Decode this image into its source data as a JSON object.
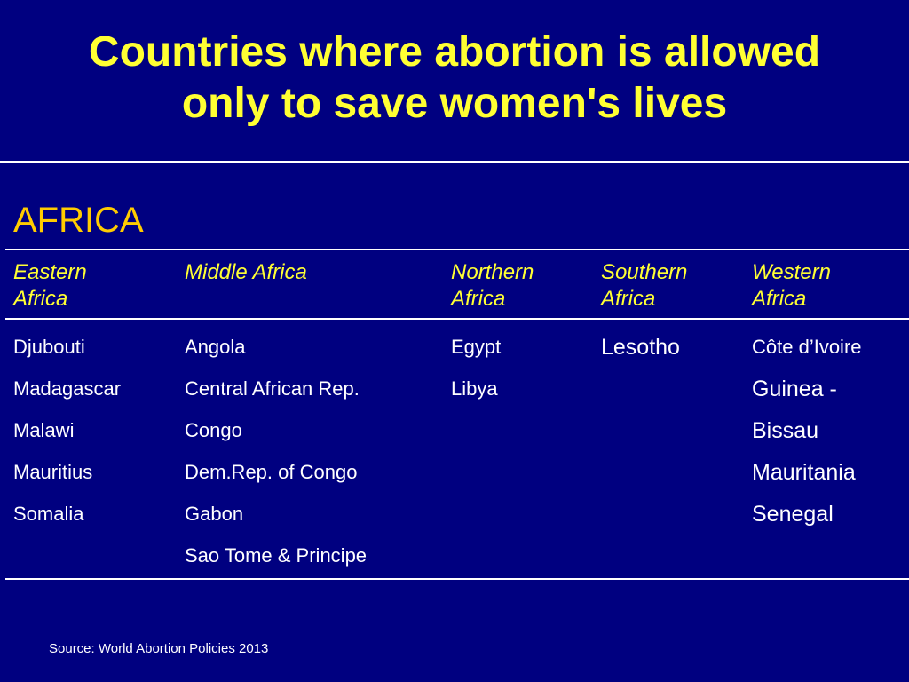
{
  "title": {
    "line1": "Countries where abortion is allowed",
    "line2": "only to save women's lives"
  },
  "region": "AFRICA",
  "columns": [
    {
      "header_line1": "Eastern",
      "header_line2": "Africa",
      "items": [
        "Djubouti",
        "Madagascar",
        "Malawi",
        "Mauritius",
        "Somalia"
      ]
    },
    {
      "header_line1": "Middle Africa",
      "header_line2": "",
      "items": [
        "Angola",
        "Central African Rep.",
        "Congo",
        "Dem.Rep. of  Congo",
        "Gabon",
        "Sao Tome  & Principe"
      ]
    },
    {
      "header_line1": "Northern",
      "header_line2": "Africa",
      "items": [
        "Egypt",
        "Libya"
      ]
    },
    {
      "header_line1": "Southern",
      "header_line2": "Africa",
      "items": [
        "Lesotho"
      ]
    },
    {
      "header_line1": "Western",
      "header_line2": "Africa",
      "items": [
        "Côte d’Ivoire",
        "Guinea -",
        "Bissau",
        "Mauritania",
        "Senegal"
      ]
    }
  ],
  "source": "Source: World Abortion Policies 2013",
  "colors": {
    "background": "#000080",
    "title": "#ffff33",
    "region": "#ffcc00",
    "text": "#ffffff"
  }
}
